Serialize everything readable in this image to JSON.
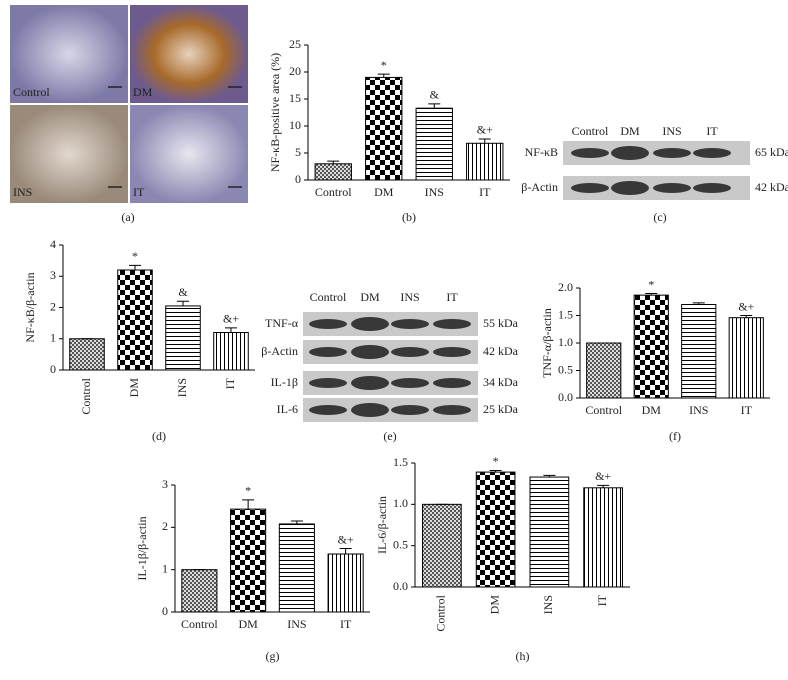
{
  "images": [
    {
      "label": "Control"
    },
    {
      "label": "DM"
    },
    {
      "label": "INS"
    },
    {
      "label": "IT"
    }
  ],
  "images_panel_label": "(a)",
  "blots": [
    {
      "panel_label": "(c)",
      "lanes": [
        "Control",
        "DM",
        "INS",
        "IT"
      ],
      "rows": [
        {
          "label": "NF-κB",
          "size": "65 kDa"
        },
        {
          "label": "β-Actin",
          "size": "42 kDa"
        }
      ]
    },
    {
      "panel_label": "(e)",
      "lanes": [
        "Control",
        "DM",
        "INS",
        "IT"
      ],
      "rows": [
        {
          "label": "TNF-α",
          "size": "55 kDa"
        },
        {
          "label": "β-Actin",
          "size": "42 kDa"
        },
        {
          "label": "IL-1β",
          "size": "34 kDa"
        },
        {
          "label": "IL-6",
          "size": "25 kDa"
        }
      ]
    }
  ],
  "chart_data": [
    {
      "type": "bar",
      "panel_label": "(b)",
      "y_label": "NF-κB-positive area (%)",
      "categories": [
        "Control",
        "DM",
        "INS",
        "IT"
      ],
      "values": [
        3,
        19,
        13.3,
        6.8
      ],
      "errors": [
        0.5,
        0.6,
        0.8,
        0.8
      ],
      "annotations": [
        null,
        "*",
        "&",
        "&+"
      ],
      "ylim": [
        0,
        25
      ],
      "yticks": [
        0,
        5,
        10,
        15,
        20,
        25
      ]
    },
    {
      "type": "bar",
      "panel_label": "(d)",
      "y_label": "NF-κB/β-actin",
      "categories": [
        "Control",
        "DM",
        "INS",
        "IT"
      ],
      "values": [
        1,
        3.2,
        2.05,
        1.2
      ],
      "errors": [
        0,
        0.15,
        0.15,
        0.15
      ],
      "annotations": [
        null,
        "*",
        "&",
        "&+"
      ],
      "ylim": [
        0,
        4
      ],
      "yticks": [
        0,
        1,
        2,
        3,
        4
      ]
    },
    {
      "type": "bar",
      "panel_label": "(f)",
      "y_label": "TNF-α/β-actin",
      "categories": [
        "Control",
        "DM",
        "INS",
        "IT"
      ],
      "values": [
        1,
        1.87,
        1.7,
        1.46
      ],
      "errors": [
        0,
        0.03,
        0.03,
        0.04
      ],
      "annotations": [
        null,
        "*",
        null,
        "&+"
      ],
      "ylim": [
        0,
        2
      ],
      "yticks": [
        {
          "value": 0,
          "label": "0.0"
        },
        0.5,
        {
          "value": 1,
          "label": "1.0"
        },
        1.5,
        {
          "value": 2,
          "label": "2.0"
        }
      ]
    },
    {
      "type": "bar",
      "panel_label": "(g)",
      "y_label": "IL-1β/β-actin",
      "categories": [
        "Control",
        "DM",
        "INS",
        "IT"
      ],
      "values": [
        1,
        2.43,
        2.08,
        1.37
      ],
      "errors": [
        0,
        0.22,
        0.07,
        0.13
      ],
      "annotations": [
        null,
        "*",
        null,
        "&+"
      ],
      "ylim": [
        0,
        3
      ],
      "yticks": [
        0,
        1,
        2,
        3
      ]
    },
    {
      "type": "bar",
      "panel_label": "(h)",
      "y_label": "IL-6/β-actin",
      "categories": [
        "Control",
        "DM",
        "INS",
        "IT"
      ],
      "values": [
        1,
        1.39,
        1.33,
        1.2
      ],
      "errors": [
        0,
        0.02,
        0.02,
        0.03
      ],
      "annotations": [
        null,
        "*",
        null,
        "&+"
      ],
      "ylim": [
        0,
        1.5
      ],
      "yticks": [
        {
          "value": 0,
          "label": "0.0"
        },
        0.5,
        {
          "value": 1,
          "label": "1.0"
        },
        1.5
      ]
    }
  ]
}
